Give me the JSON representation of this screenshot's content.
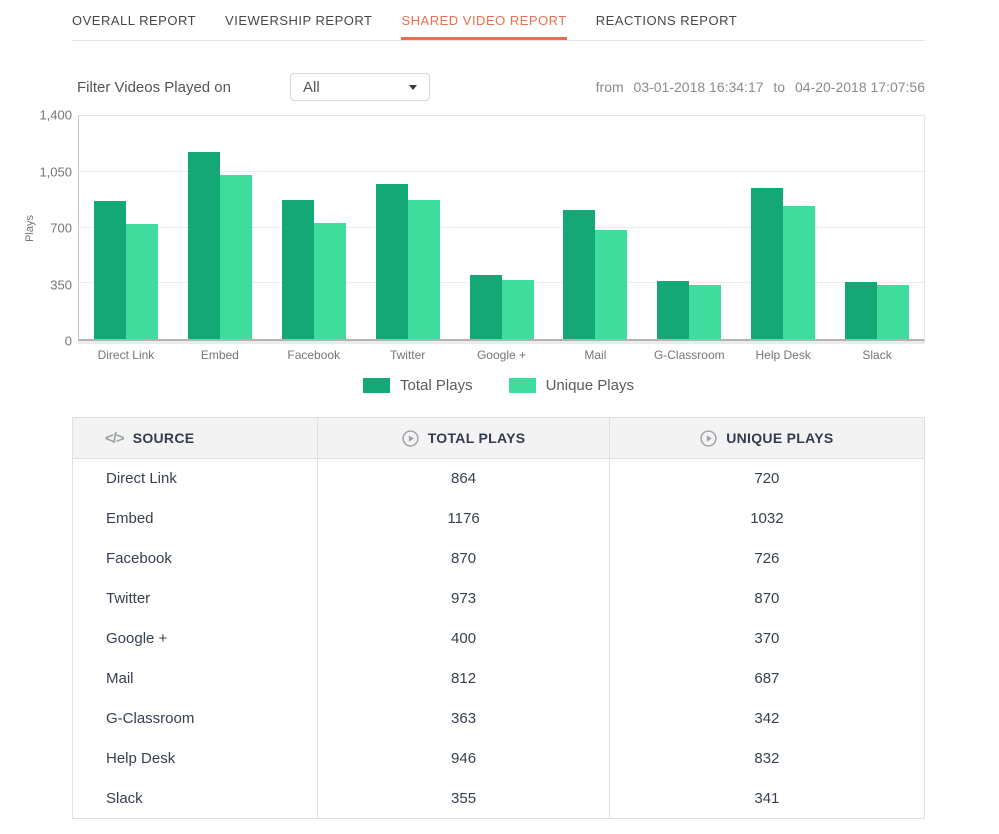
{
  "colors": {
    "accent": "#ED6E4F",
    "total_plays_bar": "#14A877",
    "unique_plays_bar": "#3EDC9D",
    "header_bg": "#F3F3F4",
    "border": "#E0E0E0"
  },
  "tabs": [
    {
      "label": "OVERALL REPORT",
      "active": false
    },
    {
      "label": "VIEWERSHIP REPORT",
      "active": false
    },
    {
      "label": "SHARED VIDEO REPORT",
      "active": true
    },
    {
      "label": "REACTIONS REPORT",
      "active": false
    }
  ],
  "filter": {
    "label": "Filter Videos Played on",
    "dropdown_value": "All",
    "date": {
      "from_label": "from",
      "from_value": "03-01-2018 16:34:17",
      "to_label": "to",
      "to_value": "04-20-2018 17:07:56"
    }
  },
  "chart_data": {
    "type": "bar",
    "categories": [
      "Direct Link",
      "Embed",
      "Facebook",
      "Twitter",
      "Google +",
      "Mail",
      "G-Classroom",
      "Help Desk",
      "Slack"
    ],
    "series": [
      {
        "name": "Total Plays",
        "color": "#14A877",
        "values": [
          864,
          1176,
          870,
          973,
          400,
          812,
          363,
          946,
          355
        ]
      },
      {
        "name": "Unique Plays",
        "color": "#3EDC9D",
        "values": [
          720,
          1032,
          726,
          870,
          370,
          687,
          342,
          832,
          341
        ]
      }
    ],
    "title": "",
    "xlabel": "",
    "ylabel": "Plays",
    "ylim": [
      0,
      1400
    ],
    "yticks": [
      {
        "value": 0,
        "label": "0"
      },
      {
        "value": 350,
        "label": "350"
      },
      {
        "value": 700,
        "label": "700"
      },
      {
        "value": 1050,
        "label": "1,050"
      },
      {
        "value": 1400,
        "label": "1,400"
      }
    ],
    "grid": true,
    "legend_position": "bottom"
  },
  "table": {
    "columns": [
      {
        "label": "SOURCE",
        "icon": "code-icon"
      },
      {
        "label": "TOTAL PLAYS",
        "icon": "play-circle-icon"
      },
      {
        "label": "UNIQUE PLAYS",
        "icon": "play-circle-icon"
      }
    ],
    "rows": [
      {
        "source": "Direct Link",
        "total_plays": "864",
        "unique_plays": "720"
      },
      {
        "source": "Embed",
        "total_plays": "1176",
        "unique_plays": "1032"
      },
      {
        "source": "Facebook",
        "total_plays": "870",
        "unique_plays": "726"
      },
      {
        "source": "Twitter",
        "total_plays": "973",
        "unique_plays": "870"
      },
      {
        "source": "Google +",
        "total_plays": "400",
        "unique_plays": "370"
      },
      {
        "source": "Mail",
        "total_plays": "812",
        "unique_plays": "687"
      },
      {
        "source": "G-Classroom",
        "total_plays": "363",
        "unique_plays": "342"
      },
      {
        "source": "Help Desk",
        "total_plays": "946",
        "unique_plays": "832"
      },
      {
        "source": "Slack",
        "total_plays": "355",
        "unique_plays": "341"
      }
    ]
  }
}
